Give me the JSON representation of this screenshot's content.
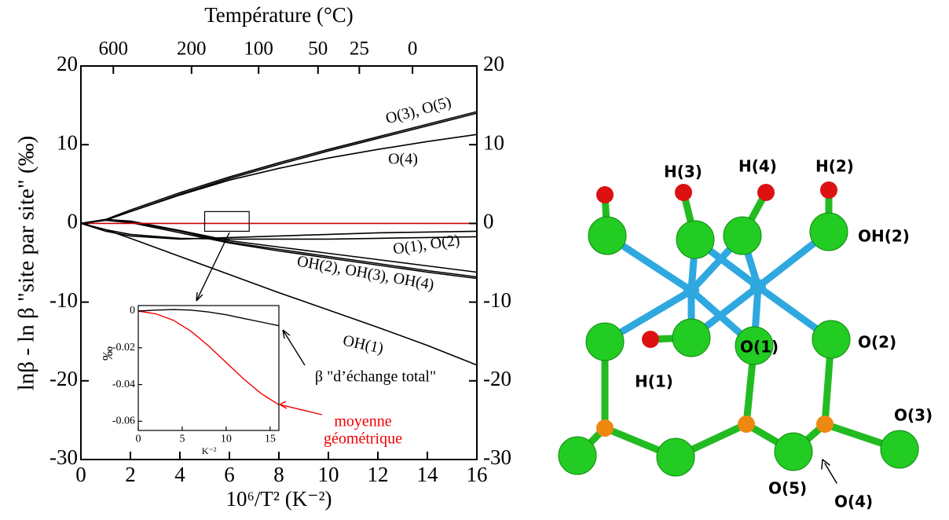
{
  "chart_data": [
    {
      "type": "line",
      "title": "Température (°C)",
      "x_label": "10⁶/T² (K⁻²)",
      "y_label": "lnβ - ln β \"site par site\" (‰)",
      "x": [
        0,
        1,
        2,
        4,
        6,
        8,
        10,
        12,
        14,
        16
      ],
      "series": [
        {
          "color": "#000000",
          "values": [
            0,
            0.5,
            1.7,
            3.9,
            5.9,
            7.7,
            9.4,
            11.0,
            12.6,
            14.2
          ]
        },
        {
          "color": "#000000",
          "values": [
            0,
            0.4,
            1.5,
            3.7,
            5.7,
            7.5,
            9.2,
            10.8,
            12.4,
            14.0
          ]
        },
        {
          "color": "#000000",
          "values": [
            0,
            0.4,
            1.5,
            3.6,
            5.5,
            7.0,
            8.3,
            9.4,
            10.4,
            11.3
          ]
        },
        {
          "color": "#000000",
          "values": [
            0,
            -1.0,
            -1.6,
            -2.0,
            -1.8,
            -1.6,
            -1.4,
            -1.2,
            -1.1,
            -1.0
          ]
        },
        {
          "color": "#000000",
          "values": [
            0,
            -0.8,
            -1.4,
            -1.9,
            -2.0,
            -2.0,
            -2.0,
            -1.9,
            -1.8,
            -1.7
          ]
        },
        {
          "color": "#000000",
          "values": [
            0,
            0.5,
            0.3,
            -0.9,
            -2.2,
            -3.0,
            -3.8,
            -4.6,
            -5.4,
            -6.2
          ]
        },
        {
          "color": "#000000",
          "values": [
            0,
            0.5,
            0.2,
            -1.0,
            -2.4,
            -3.3,
            -4.2,
            -5.1,
            -6.0,
            -6.8
          ]
        },
        {
          "color": "#000000",
          "values": [
            0,
            0.4,
            0.1,
            -1.2,
            -2.5,
            -3.5,
            -4.4,
            -5.3,
            -6.2,
            -7.0
          ]
        },
        {
          "color": "#000000",
          "values": [
            0,
            -0.8,
            -1.9,
            -4.2,
            -6.5,
            -8.8,
            -11.0,
            -13.2,
            -15.5,
            -18.0
          ]
        },
        {
          "color": "#cc0000",
          "values": [
            0,
            0,
            0,
            0,
            0,
            0,
            0,
            0,
            0,
            0
          ]
        }
      ],
      "annotations": [
        "O(3), O(5)",
        "O(4)",
        "O(1), O(2)",
        "OH(2), OH(3), OH(4)",
        "OH(1)",
        "β \"d’échange total\"",
        "moyenne",
        "géométrique"
      ],
      "xlim": [
        0,
        16
      ],
      "ylim": [
        -30,
        20
      ],
      "xticks": [
        0,
        2,
        4,
        6,
        8,
        10,
        12,
        14,
        16
      ],
      "yticks": [
        -30,
        -20,
        -10,
        0,
        10,
        20
      ],
      "top_ticks": [
        {
          "value": 1.31,
          "label": "600"
        },
        {
          "value": 4.47,
          "label": "200"
        },
        {
          "value": 7.18,
          "label": "100"
        },
        {
          "value": 9.58,
          "label": "50"
        },
        {
          "value": 11.25,
          "label": "25"
        },
        {
          "value": 13.4,
          "label": "0"
        }
      ]
    },
    {
      "type": "line",
      "x_label": "K⁻²",
      "y_label": "‰",
      "x": [
        0,
        2,
        4,
        6,
        8,
        10,
        12,
        14,
        16
      ],
      "series": [
        {
          "color": "#000000",
          "values": [
            0,
            0.0005,
            0.0008,
            0.0005,
            -0.0005,
            -0.002,
            -0.004,
            -0.006,
            -0.008
          ]
        },
        {
          "color": "#ee0000",
          "values": [
            0,
            -0.0015,
            -0.005,
            -0.011,
            -0.019,
            -0.028,
            -0.037,
            -0.045,
            -0.051
          ]
        }
      ],
      "xlim": [
        0,
        16
      ],
      "ylim": [
        -0.065,
        0.003
      ],
      "xticks": [
        0,
        5,
        10,
        15
      ],
      "yticks": [
        0,
        {
          "value": -0.02,
          "label": "-0.02"
        },
        {
          "value": -0.04,
          "label": "-0.04"
        },
        {
          "value": -0.06,
          "label": "-0.06"
        }
      ]
    }
  ],
  "diagram": {
    "labels": [
      "H(3)",
      "H(4)",
      "H(2)",
      "OH(2)",
      "O(1)",
      "O(2)",
      "H(1)",
      "O(3)",
      "O(5)",
      "O(4)"
    ]
  }
}
